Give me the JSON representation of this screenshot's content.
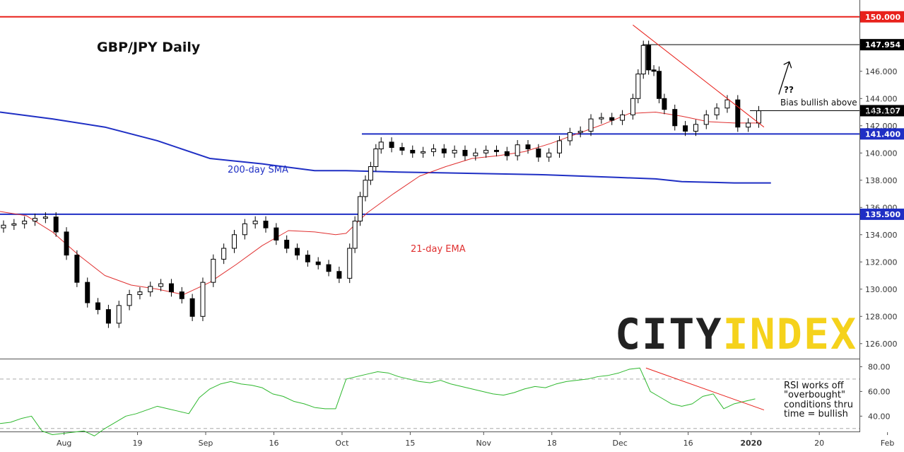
{
  "chart_data": [
    {
      "type": "candlestick",
      "title": "GBP/JPY Daily",
      "ylim": [
        125,
        152
      ],
      "y_ticks": [
        "126.000",
        "128.000",
        "130.000",
        "132.000",
        "134.000",
        "136.000",
        "138.000",
        "140.000",
        "142.000",
        "144.000",
        "146.000"
      ],
      "x_ticks": [
        "Aug",
        "19",
        "Sep",
        "16",
        "Oct",
        "15",
        "Nov",
        "18",
        "Dec",
        "16",
        "2020",
        "20",
        "Feb"
      ],
      "x_tick_positions": [
        4,
        18,
        31,
        44,
        57,
        70,
        84,
        97,
        110,
        123,
        135,
        148,
        161
      ],
      "price_labels": [
        {
          "text": "150.000",
          "value": 150.0,
          "color": "#e8211b"
        },
        {
          "text": "147.954",
          "value": 147.954,
          "color": "#000000"
        },
        {
          "text": "143.107",
          "value": 143.107,
          "color": "#000000"
        },
        {
          "text": "143.020",
          "value": 143.02,
          "color": "none"
        },
        {
          "text": "141.400",
          "value": 141.4,
          "color": "#1f2fc4"
        },
        {
          "text": "135.500",
          "value": 135.5,
          "color": "#1f2fc4"
        }
      ],
      "horizontal_lines": [
        {
          "value": 150.0,
          "color": "#e8211b",
          "from": 0,
          "to": 173
        },
        {
          "value": 147.954,
          "color": "#000000",
          "from": 122.5,
          "to": 173
        },
        {
          "value": 143.107,
          "color": "#000000",
          "from": 143,
          "to": 173
        },
        {
          "value": 141.4,
          "color": "#1f2fc4",
          "from": 69,
          "to": 173
        },
        {
          "value": 135.5,
          "color": "#1f2fc4",
          "from": 0,
          "to": 173
        }
      ],
      "trendline": {
        "from": [
          120,
          149.4
        ],
        "to": [
          145,
          141.9
        ],
        "color": "#e8211b"
      },
      "arrow": {
        "from": [
          148.5,
          144.3
        ],
        "to": [
          150.5,
          146.7
        ]
      },
      "annotations": [
        {
          "text": "200-day SMA",
          "color": "#1f2fc4"
        },
        {
          "text": "21-day EMA",
          "color": "#e03030"
        },
        {
          "text": "??",
          "color": "#111111"
        },
        {
          "text": "Bias bullish above",
          "color": "#111111"
        }
      ],
      "series": [
        {
          "name": "200-day SMA",
          "color": "#1f2fc4",
          "x": [
            0,
            10,
            20,
            30,
            40,
            50,
            60,
            66,
            76,
            90,
            104,
            118,
            125,
            130,
            140,
            147
          ],
          "y": [
            143.0,
            142.5,
            141.9,
            140.9,
            139.6,
            139.2,
            138.7,
            138.7,
            138.6,
            138.5,
            138.4,
            138.2,
            138.1,
            137.9,
            137.8,
            137.8
          ]
        },
        {
          "name": "21-day EMA",
          "color": "#e03030",
          "x": [
            0,
            5,
            10,
            15,
            20,
            25,
            30,
            35,
            40,
            45,
            50,
            55,
            60,
            64,
            66,
            70,
            75,
            80,
            85,
            90,
            95,
            100,
            105,
            110,
            115,
            120,
            125,
            130,
            135,
            140,
            145
          ],
          "y": [
            135.7,
            135.4,
            134.2,
            132.5,
            131.0,
            130.3,
            130.0,
            129.6,
            130.5,
            131.8,
            133.2,
            134.3,
            134.2,
            134.0,
            134.1,
            135.6,
            137.0,
            138.3,
            139.0,
            139.6,
            139.8,
            140.1,
            140.7,
            141.4,
            142.1,
            142.9,
            143.0,
            142.7,
            142.3,
            142.2,
            142.2
          ]
        },
        {
          "name": "GBP/JPY",
          "color": "#000000",
          "x": [
            0,
            2,
            4,
            6,
            8,
            10,
            12,
            14,
            16,
            18,
            20,
            22,
            24,
            26,
            28,
            30,
            32,
            34,
            36,
            38,
            40,
            42,
            44,
            46,
            48,
            50,
            52,
            54,
            56,
            58,
            60,
            62,
            64,
            66,
            67,
            68,
            69,
            70,
            71,
            72,
            74,
            76,
            78,
            80,
            82,
            84,
            86,
            88,
            90,
            92,
            94,
            96,
            98,
            100,
            102,
            104,
            106,
            108,
            110,
            112,
            114,
            116,
            118,
            120,
            121,
            122,
            123,
            124,
            125,
            126,
            128,
            130,
            132,
            134,
            136,
            138,
            140,
            142,
            144
          ],
          "y": [
            134.7,
            134.8,
            135.0,
            135.2,
            135.3,
            134.2,
            132.5,
            130.5,
            129.0,
            128.5,
            127.5,
            128.8,
            129.6,
            129.8,
            130.2,
            130.4,
            129.8,
            129.3,
            128.0,
            130.5,
            132.2,
            133.0,
            134.0,
            134.8,
            135.0,
            134.5,
            133.6,
            133.0,
            132.5,
            132.0,
            131.8,
            131.3,
            130.8,
            133.0,
            135.0,
            136.8,
            138.0,
            139.0,
            140.3,
            140.8,
            140.4,
            140.2,
            140.0,
            140.1,
            140.3,
            140.0,
            140.2,
            139.8,
            140.0,
            140.2,
            140.1,
            139.8,
            140.6,
            140.3,
            139.7,
            140.0,
            140.9,
            141.5,
            141.6,
            142.5,
            142.6,
            142.4,
            142.8,
            144.0,
            145.8,
            147.9,
            146.1,
            146.0,
            144.0,
            143.2,
            142.0,
            141.6,
            142.1,
            142.8,
            143.3,
            143.9,
            141.9,
            142.2,
            143.1
          ]
        }
      ]
    },
    {
      "type": "line",
      "title": "",
      "ylim": [
        27,
        86
      ],
      "y_ticks": [
        "40.00",
        "60.00",
        "80.00"
      ],
      "reference_lines": [
        30,
        70
      ],
      "annotation": [
        "RSI works off",
        "\"overbought\"",
        "conditions thru",
        "time = bullish"
      ],
      "series": [
        {
          "name": "RSI",
          "color": "#2eb82e",
          "x": [
            0,
            2,
            4,
            6,
            8,
            10,
            12,
            14,
            16,
            18,
            20,
            22,
            24,
            26,
            28,
            30,
            32,
            34,
            36,
            38,
            40,
            42,
            44,
            46,
            48,
            50,
            52,
            54,
            56,
            58,
            60,
            62,
            64,
            66,
            68,
            70,
            72,
            74,
            76,
            78,
            80,
            82,
            84,
            86,
            88,
            90,
            92,
            94,
            96,
            98,
            100,
            102,
            104,
            106,
            108,
            110,
            112,
            114,
            116,
            118,
            120,
            122,
            124,
            126,
            128,
            130,
            132,
            134,
            136,
            138,
            140,
            142,
            144
          ],
          "y": [
            34,
            35,
            38,
            40,
            28,
            25,
            26,
            27,
            28,
            24,
            30,
            35,
            40,
            42,
            45,
            48,
            46,
            44,
            42,
            55,
            62,
            66,
            68,
            66,
            65,
            63,
            58,
            56,
            52,
            50,
            47,
            46,
            46,
            70,
            72,
            74,
            76,
            75,
            72,
            70,
            68,
            67,
            69,
            66,
            64,
            62,
            60,
            58,
            57,
            59,
            62,
            64,
            63,
            66,
            68,
            69,
            70,
            72,
            73,
            75,
            78,
            79,
            60,
            55,
            50,
            48,
            50,
            56,
            58,
            46,
            50,
            52,
            54
          ]
        }
      ]
    }
  ],
  "logo": {
    "part1": "CITY",
    "part2": "INDEX",
    "color1": "#222222",
    "color2": "#f5d21c"
  }
}
